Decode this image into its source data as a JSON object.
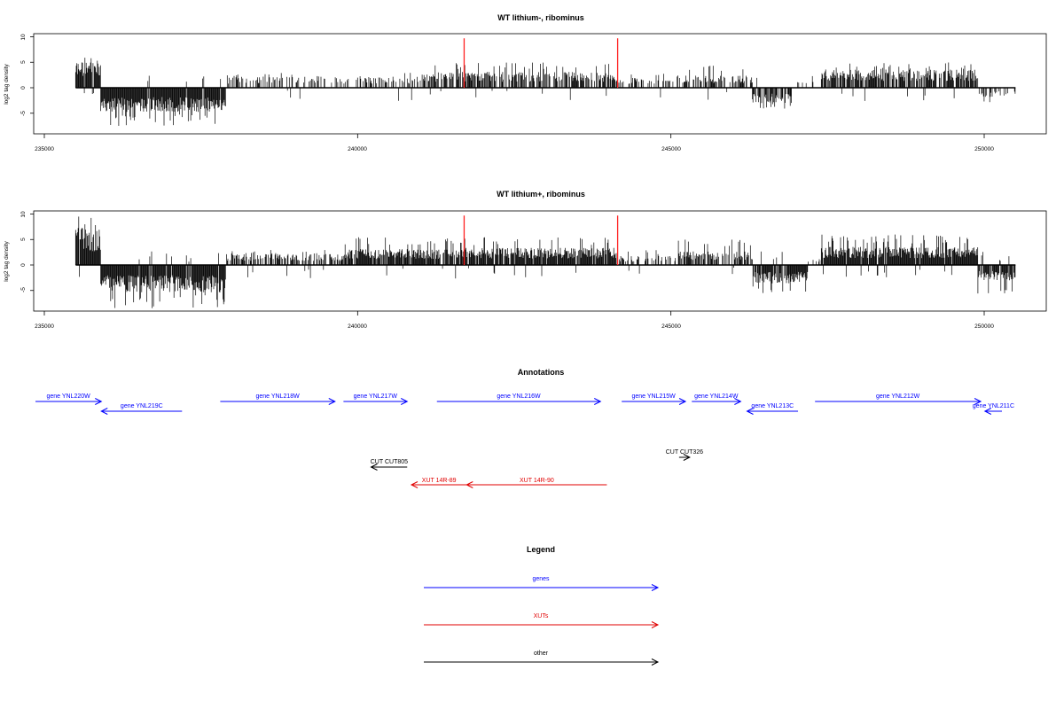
{
  "chart_data": [
    {
      "type": "bar",
      "title": "WT lithium-, ribominus",
      "ylabel": "log2 tag density",
      "xlim": [
        235000,
        250500
      ],
      "ylim": [
        -9,
        10.5
      ],
      "xticks": [
        "235000",
        "240000",
        "245000",
        "250000"
      ],
      "yticks": [
        "10",
        "5",
        "0",
        "-5"
      ],
      "region": [
        235500,
        250500
      ],
      "markers": [
        241700,
        244150
      ],
      "segments": [
        [
          235500,
          235900,
          4.5,
          7.5,
          1.0
        ],
        [
          235900,
          237900,
          -4.0,
          -7.5,
          1.0
        ],
        [
          237900,
          241000,
          1.8,
          3.0,
          0.35
        ],
        [
          241000,
          241700,
          2.6,
          5.0,
          0.6
        ],
        [
          241700,
          244150,
          2.6,
          5.0,
          0.7
        ],
        [
          244150,
          245100,
          1.6,
          3.0,
          0.35
        ],
        [
          245100,
          246300,
          2.0,
          4.5,
          0.5
        ],
        [
          246300,
          246950,
          -2.5,
          -4.5,
          0.8
        ],
        [
          246950,
          247400,
          1.2,
          2.5,
          0.2
        ],
        [
          247400,
          249900,
          3.0,
          5.0,
          0.8
        ],
        [
          249900,
          250500,
          -1.5,
          -3.5,
          0.3
        ]
      ]
    },
    {
      "type": "bar",
      "title": "WT lithium+, ribominus",
      "ylabel": "log2 tag density",
      "xlim": [
        235000,
        250500
      ],
      "ylim": [
        -9,
        10.5
      ],
      "xticks": [
        "235000",
        "240000",
        "245000",
        "250000"
      ],
      "yticks": [
        "10",
        "5",
        "0",
        "-5"
      ],
      "region": [
        235500,
        250500
      ],
      "markers": [
        241700,
        244150
      ],
      "segments": [
        [
          235500,
          235900,
          6.0,
          9.5,
          1.0
        ],
        [
          235900,
          237900,
          -4.5,
          -8.5,
          1.0
        ],
        [
          237900,
          239800,
          1.8,
          3.0,
          0.65
        ],
        [
          239800,
          241700,
          2.6,
          5.5,
          0.85
        ],
        [
          241700,
          244150,
          2.8,
          5.5,
          0.9
        ],
        [
          244150,
          245100,
          1.5,
          3.0,
          0.4
        ],
        [
          245100,
          246300,
          2.2,
          5.0,
          0.6
        ],
        [
          246300,
          247200,
          -3.0,
          -6.0,
          0.9
        ],
        [
          247200,
          247400,
          1.0,
          2.0,
          0.2
        ],
        [
          247400,
          249900,
          3.0,
          6.0,
          1.0
        ],
        [
          249900,
          250500,
          -2.5,
          -6.0,
          0.9
        ]
      ]
    }
  ],
  "annotations": {
    "title": "Annotations",
    "genes": [
      {
        "label": "gene YNL220W",
        "start": 235100,
        "end": 236650,
        "strand": "+",
        "row": 0
      },
      {
        "label": "gene YNL219C",
        "start": 236650,
        "end": 238550,
        "strand": "-",
        "row": 1
      },
      {
        "label": "gene YNL218W",
        "start": 239450,
        "end": 242150,
        "strand": "+",
        "row": 0
      },
      {
        "label": "gene YNL217W",
        "start": 242350,
        "end": 243850,
        "strand": "+",
        "row": 0
      },
      {
        "label": "gene YNL216W",
        "start": 244550,
        "end": 248400,
        "strand": "+",
        "row": 0
      },
      {
        "label": "gene YNL215W",
        "start": 248900,
        "end": 250400,
        "strand": "+",
        "row": 0
      },
      {
        "label": "gene YNL214W",
        "start": 250550,
        "end": 251700,
        "strand": "+",
        "row": 0
      },
      {
        "label": "gene YNL213C",
        "start": 251850,
        "end": 253050,
        "strand": "-",
        "row": 1
      },
      {
        "label": "gene YNL212W",
        "start": 253450,
        "end": 257350,
        "strand": "+",
        "row": 0
      },
      {
        "label": "gene YNL211C",
        "start": 257450,
        "end": 257850,
        "strand": "-",
        "row": 1
      }
    ],
    "others": [
      {
        "label": "CUT CUT805",
        "start": 243000,
        "end": 243850,
        "strand": "-"
      },
      {
        "label": "CUT CUT326",
        "start": 250250,
        "end": 250500,
        "strand": "+"
      }
    ],
    "xuts": [
      {
        "label": "XUT 14R-89",
        "start": 243950,
        "end": 245250,
        "strand": "-"
      },
      {
        "label": "XUT 14R-90",
        "start": 245250,
        "end": 248550,
        "strand": "-"
      }
    ]
  },
  "legend": {
    "title": "Legend",
    "items": [
      {
        "label": "genes",
        "color": "#0000ff"
      },
      {
        "label": "XUTs",
        "color": "#e00000"
      },
      {
        "label": "other",
        "color": "#000000"
      }
    ]
  },
  "colors": {
    "genes": "#0000ff",
    "xuts": "#e00000",
    "other": "#000000",
    "marker": "#ff2020"
  }
}
